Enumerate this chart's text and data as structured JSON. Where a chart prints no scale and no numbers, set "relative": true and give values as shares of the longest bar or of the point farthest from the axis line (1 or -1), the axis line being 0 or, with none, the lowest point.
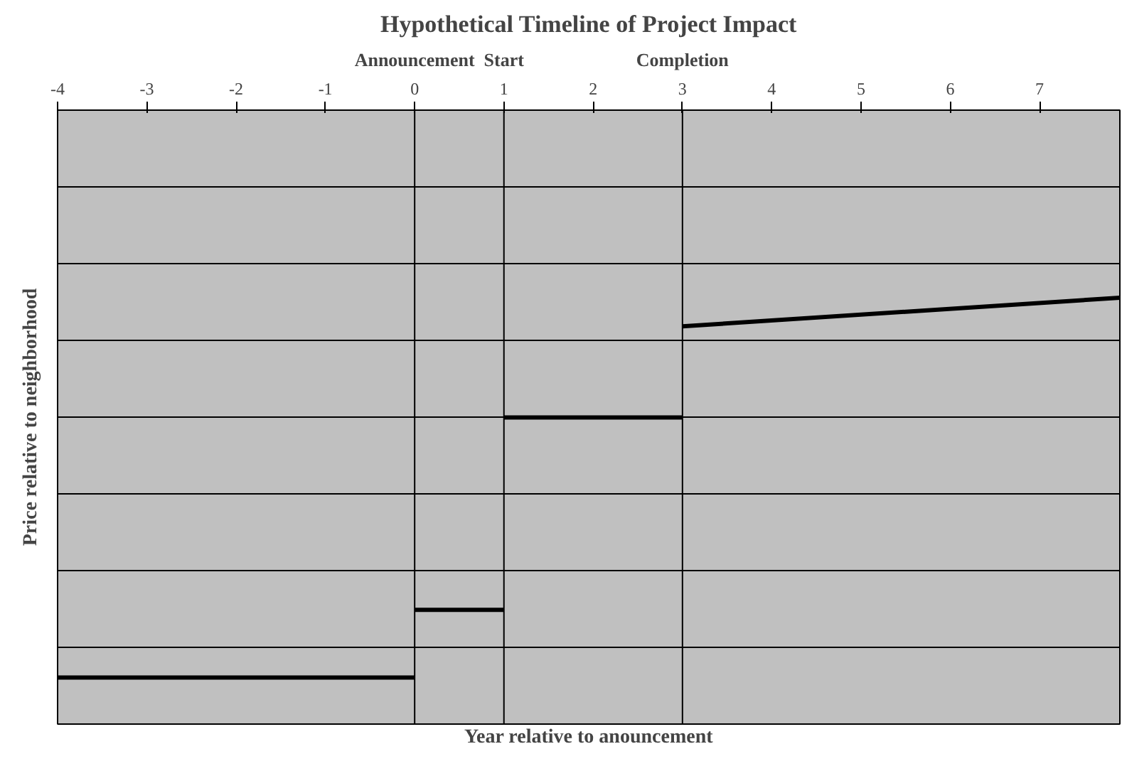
{
  "chart_data": {
    "type": "line",
    "title": "Hypothetical Timeline of Project Impact",
    "relative": true,
    "xlabel": "Year relative to anouncement",
    "ylabel": "Price relative to neighborhood",
    "xlim": [
      -4,
      7.9
    ],
    "xticks": [
      -4,
      -3,
      -2,
      -1,
      0,
      1,
      2,
      3,
      4,
      5,
      6,
      7
    ],
    "tick_labels": "x",
    "grid": "y",
    "line_style": "solid",
    "marker": "none",
    "series": [
      {
        "x": [
          -4,
          0
        ],
        "values": [
          0.109,
          0.109
        ],
        "color": "#000000"
      },
      {
        "x": [
          0,
          1
        ],
        "values": [
          0.268,
          0.268
        ],
        "color": "#000000"
      },
      {
        "x": [
          1,
          3
        ],
        "values": [
          0.719,
          0.719
        ],
        "color": "#000000"
      },
      {
        "x": [
          3,
          7.9
        ],
        "values": [
          0.933,
          1
        ],
        "color": "#000000"
      }
    ],
    "ref_lines": [
      {
        "axis": "x",
        "value": 0,
        "label": "Announcement",
        "color": "#000000"
      },
      {
        "axis": "x",
        "value": 1,
        "label": "Start",
        "color": "#000000"
      },
      {
        "axis": "x",
        "value": 3,
        "label": "Completion",
        "color": "#000000"
      }
    ]
  }
}
